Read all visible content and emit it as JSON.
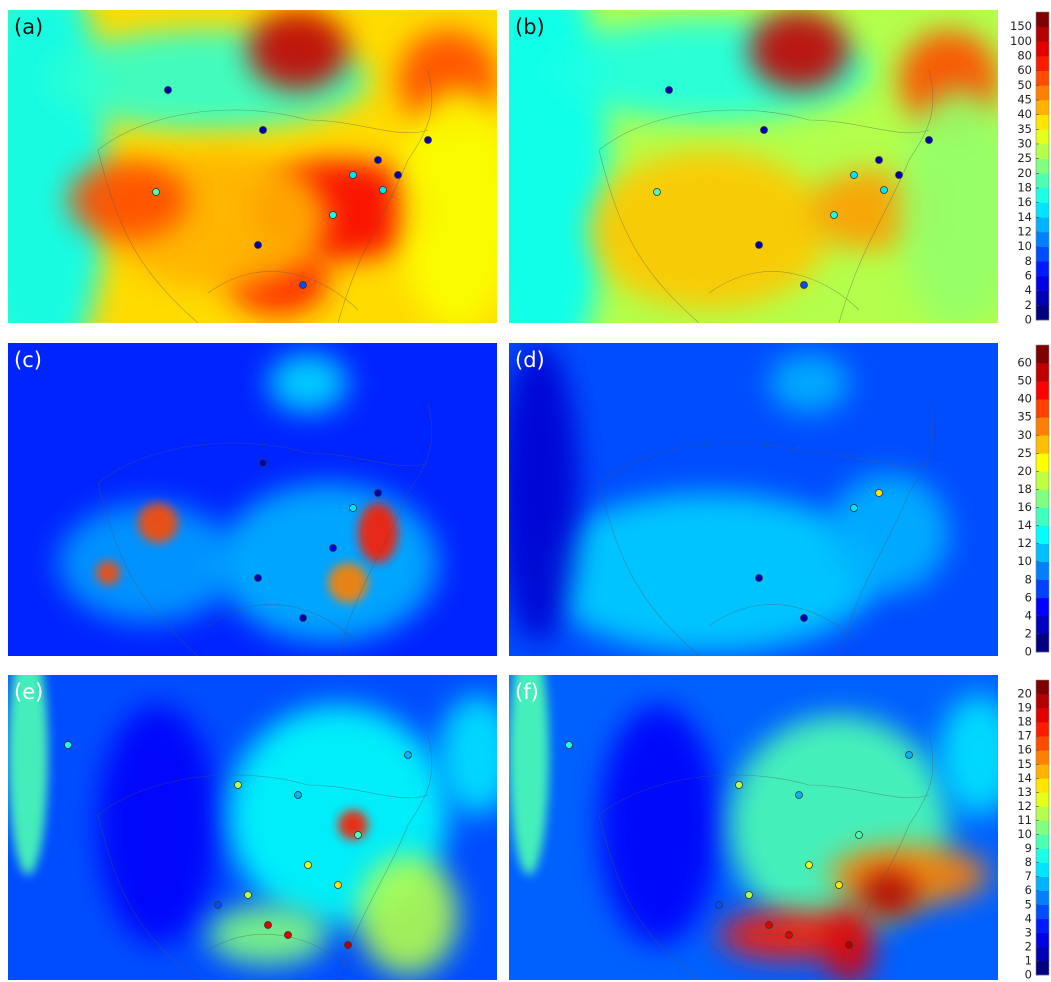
{
  "panels": [
    {
      "label": "(a)"
    },
    {
      "label": "(b)"
    },
    {
      "label": "(c)"
    },
    {
      "label": "(d)"
    },
    {
      "label": "(e)"
    },
    {
      "label": "(f)"
    }
  ],
  "colorbars": [
    {
      "ticks": [
        0,
        2,
        4,
        6,
        8,
        10,
        12,
        14,
        16,
        18,
        20,
        25,
        30,
        35,
        40,
        45,
        50,
        60,
        80,
        100,
        150
      ]
    },
    {
      "ticks": [
        0,
        2,
        4,
        6,
        8,
        10,
        12,
        14,
        16,
        18,
        20,
        25,
        30,
        35,
        40,
        50,
        60
      ]
    },
    {
      "ticks": [
        0,
        1,
        2,
        3,
        4,
        5,
        6,
        7,
        8,
        9,
        10,
        11,
        12,
        13,
        14,
        15,
        16,
        17,
        18,
        19,
        20
      ]
    }
  ]
}
